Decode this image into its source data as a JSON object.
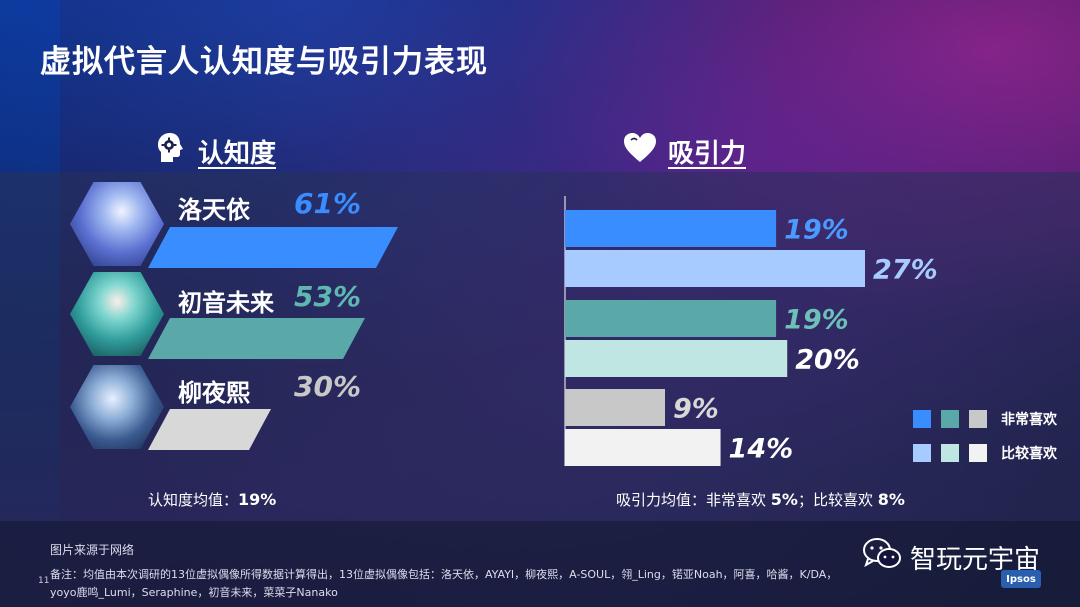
{
  "title": "虚拟代言人认知度与吸引力表现",
  "awareness": {
    "heading": "认知度",
    "icon": "head-gear-icon",
    "items": [
      {
        "name": "洛天依",
        "value": 61,
        "label": "61%",
        "color": "#3a8dff",
        "pct_color": "#3a8dff"
      },
      {
        "name": "初音未来",
        "value": 53,
        "label": "53%",
        "color": "#5aa8a8",
        "pct_color": "#5fb8b0"
      },
      {
        "name": "柳夜熙",
        "value": 30,
        "label": "30%",
        "color": "#d8d8d8",
        "pct_color": "#c8c8c8"
      }
    ],
    "mean_label": "认知度均值：",
    "mean_value": "19%"
  },
  "appeal": {
    "heading": "吸引力",
    "icon": "heart-icon",
    "mean_label": "吸引力均值：非常喜欢 ",
    "mean_value_1": "5%",
    "mean_sep": "；比较喜欢 ",
    "mean_value_2": "8%"
  },
  "chart_data": [
    {
      "type": "bar",
      "title": "认知度",
      "categories": [
        "洛天依",
        "初音未来",
        "柳夜熙"
      ],
      "values": [
        61,
        53,
        30
      ],
      "unit": "%"
    },
    {
      "type": "bar",
      "orientation": "horizontal",
      "title": "吸引力",
      "categories": [
        "洛天依",
        "初音未来",
        "柳夜熙"
      ],
      "series": [
        {
          "name": "非常喜欢",
          "values": [
            19,
            19,
            9
          ],
          "colors": [
            "#3a8dff",
            "#5aa8a8",
            "#c8c8c8"
          ]
        },
        {
          "name": "比较喜欢",
          "values": [
            27,
            20,
            14
          ],
          "colors": [
            "#a8cbff",
            "#bfe6e2",
            "#f2f2f2"
          ]
        }
      ],
      "labels": [
        [
          "19%",
          "27%"
        ],
        [
          "19%",
          "20%"
        ],
        [
          "9%",
          "14%"
        ]
      ],
      "label_colors": [
        [
          "#4a9aff",
          "#a8cbff"
        ],
        [
          "#6cc0b8",
          "#ffffff"
        ],
        [
          "#d8d8d8",
          "#ffffff"
        ]
      ],
      "xlim": [
        0,
        30
      ],
      "unit": "%"
    }
  ],
  "legend": {
    "items": [
      {
        "label": "非常喜欢",
        "colors": [
          "#3a8dff",
          "#5aa8a8",
          "#c8c8c8"
        ]
      },
      {
        "label": "比较喜欢",
        "colors": [
          "#a8cbff",
          "#bfe6e2",
          "#f2f2f2"
        ]
      }
    ]
  },
  "footer": {
    "source": "图片来源于网络",
    "note": "备注：均值由本次调研的13位虚拟偶像所得数据计算得出，13位虚拟偶像包括：洛天依，AYAYI，柳夜熙，A-SOUL，翎_Ling，锘亚Noah，阿喜，哈酱，K/DA，yoyo鹿鸣_Lumi，Seraphine，初音未来，菜菜子Nanako",
    "page_number": "11",
    "brand": "智玩元宇宙",
    "brand_icon": "wechat-icon",
    "logo": "Ipsos"
  }
}
